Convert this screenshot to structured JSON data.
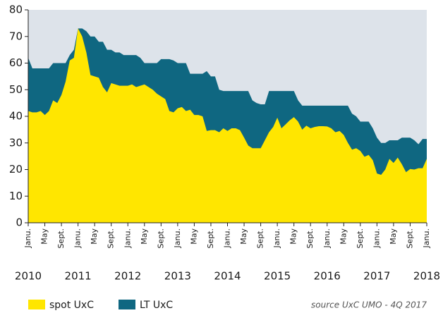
{
  "chart_data": {
    "type": "area",
    "categories": [
      "Janu.",
      null,
      null,
      null,
      "May",
      null,
      null,
      null,
      "Sept.",
      null,
      null,
      null,
      "Janu.",
      null,
      null,
      null,
      "May",
      null,
      null,
      null,
      "Sept.",
      null,
      null,
      null,
      "Janu.",
      null,
      null,
      null,
      "May",
      null,
      null,
      null,
      "Sept.",
      null,
      null,
      null,
      "Janu.",
      null,
      null,
      null,
      "May",
      null,
      null,
      null,
      "Sept.",
      null,
      null,
      null,
      "Janu.",
      null,
      null,
      null,
      "May",
      null,
      null,
      null,
      "Sept.",
      null,
      null,
      null,
      "Janu.",
      null,
      null,
      null,
      "May",
      null,
      null,
      null,
      "Sept.",
      null,
      null,
      null,
      "Janu.",
      null,
      null,
      null,
      "May",
      null,
      null,
      null,
      "Sept.",
      null,
      null,
      null,
      "Janu.",
      null,
      null,
      null,
      "May",
      null,
      null,
      null,
      "Sept.",
      null,
      null,
      null,
      "Janu."
    ],
    "years": [
      "2010",
      "2011",
      "2012",
      "2013",
      "2014",
      "2015",
      "2016",
      "2017",
      "2018"
    ],
    "series": [
      {
        "name": "LT UxC",
        "color": "#0f6781",
        "values": [
          62,
          58,
          58,
          58,
          58,
          58,
          60,
          60,
          60,
          60,
          63,
          65,
          73,
          73,
          72,
          70,
          70,
          68,
          68,
          65,
          65,
          64,
          64,
          63,
          63,
          63,
          63,
          62,
          60,
          60,
          60,
          60,
          61.5,
          61.5,
          61.5,
          61,
          60,
          60,
          60,
          56,
          56,
          56,
          56,
          57,
          55,
          55,
          50,
          49.5,
          49.5,
          49.5,
          49.5,
          49.5,
          49.5,
          49.5,
          46,
          45,
          44.5,
          44.5,
          49.5,
          49.5,
          49.5,
          49.5,
          49.5,
          49.5,
          49.5,
          46,
          44,
          44,
          44,
          44,
          44,
          44,
          44,
          44,
          44,
          44,
          44,
          44,
          41,
          40,
          38,
          38,
          38,
          35.5,
          32,
          30,
          30,
          31,
          31,
          31,
          32,
          32,
          32,
          31,
          29.5,
          31.5,
          31.5
        ]
      },
      {
        "name": "spot UxC",
        "color": "#ffe600",
        "values": [
          42,
          41.5,
          41.5,
          42,
          40.5,
          42,
          46,
          45,
          48,
          53,
          61,
          62,
          73,
          70,
          64,
          55.5,
          55,
          54.5,
          51,
          49,
          52.5,
          52,
          51.5,
          51.5,
          51.5,
          52,
          51,
          51.5,
          52,
          51,
          50,
          48.5,
          47.5,
          46.5,
          42,
          41.5,
          43,
          43.5,
          42,
          42.5,
          40.5,
          40.5,
          40,
          34.5,
          34.8,
          34.8,
          34,
          35.5,
          34.5,
          35.5,
          35.5,
          34.8,
          32,
          29,
          28,
          28,
          28,
          31,
          34,
          36,
          39.5,
          35.5,
          37,
          38.5,
          39.7,
          38,
          35,
          36.5,
          35.5,
          36,
          36.3,
          36.3,
          36.2,
          35.5,
          34,
          34.5,
          33,
          30,
          27.5,
          28,
          27,
          24.8,
          25.5,
          23.5,
          18.5,
          18,
          20,
          24,
          22.5,
          24.5,
          22,
          19,
          20.2,
          20,
          20.5,
          20.5,
          24
        ]
      }
    ],
    "legend_order": [
      1,
      0
    ],
    "source": "source UxC UMO - 4Q 2017",
    "ylim": [
      0,
      80
    ],
    "yticks": [
      0,
      10,
      20,
      30,
      40,
      50,
      60,
      70,
      80
    ],
    "grid": false
  }
}
